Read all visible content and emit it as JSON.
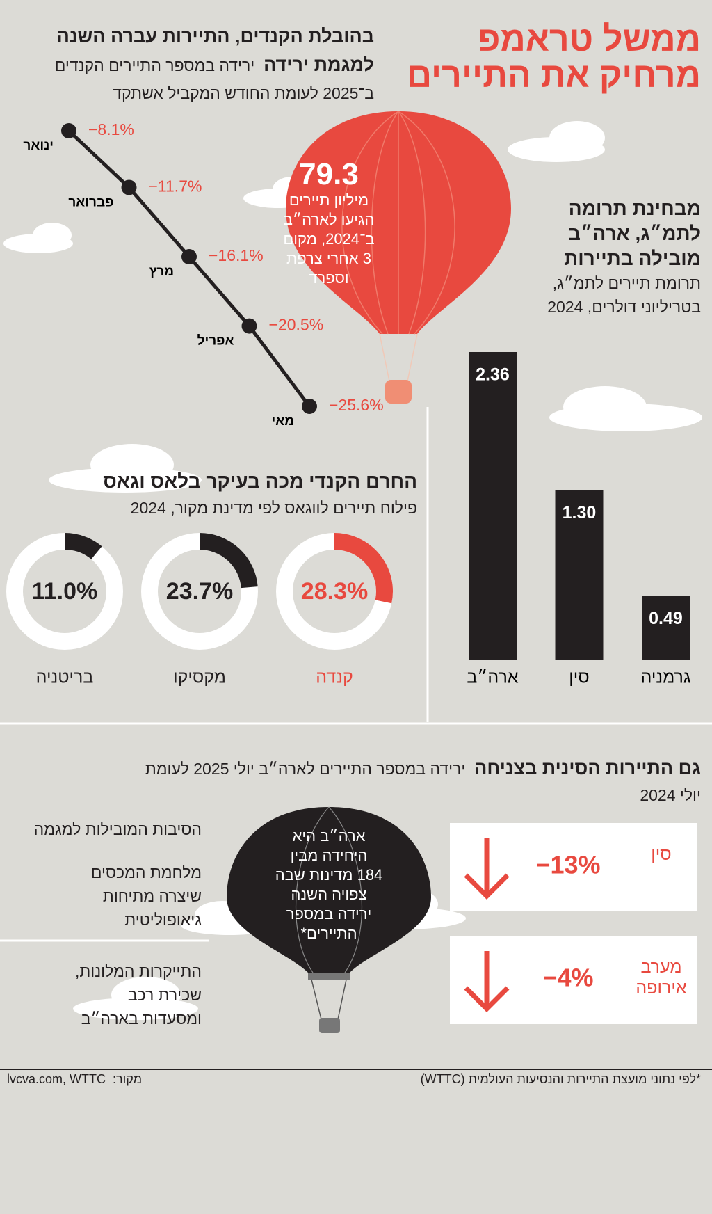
{
  "title": [
    "ממשל טראמפ",
    "מרחיק את התיירים"
  ],
  "chart_data": [
    {
      "type": "line",
      "title": "בהובלת הקנדים, התיירות עברה השנה למגמת ירידה",
      "subtitle": "ירידה במספר התיירים הקנדים ב־2025 לעומת החודש המקביל אשתקד",
      "categories": [
        "ינואר",
        "פברואר",
        "מרץ",
        "אפריל",
        "מאי"
      ],
      "values": [
        -8.1,
        -11.7,
        -16.1,
        -20.5,
        -25.6
      ],
      "value_labels": [
        "−8.1%",
        "−11.7%",
        "−16.1%",
        "−20.5%",
        "−25.6%"
      ],
      "color": "#231f20",
      "label_color": "#e8493f"
    },
    {
      "type": "bar",
      "title": "מבחינת תרומה לתמ״ג, ארה״ב מובילה בתיירות",
      "subtitle": "תרומת תיירים לתמ״ג, בטריליוני דולרים, 2024",
      "categories": [
        "ארה״ב",
        "סין",
        "גרמניה"
      ],
      "values": [
        2.36,
        1.3,
        0.49
      ],
      "value_labels": [
        "2.36",
        "1.30",
        "0.49"
      ],
      "color": "#231f20"
    },
    {
      "type": "donut",
      "title": "החרם הקנדי מכה בעיקר בלאס וגאס",
      "subtitle": "פילוח תיירים לווגאס לפי מדינת מקור, 2024",
      "categories": [
        "קנדה",
        "מקסיקו",
        "בריטניה"
      ],
      "values": [
        28.3,
        23.7,
        11.0
      ],
      "value_labels": [
        "28.3%",
        "23.7%",
        "11.0%"
      ],
      "colors": [
        "#e8493f",
        "#231f20",
        "#231f20"
      ]
    },
    {
      "type": "change",
      "title": "גם התיירות הסינית בצניחה",
      "subtitle": "ירידה במספר התיירים לארה״ב יולי 2025 לעומת יולי 2024",
      "categories": [
        "סין",
        "מערב אירופה"
      ],
      "values": [
        -13,
        -4
      ],
      "value_labels": [
        "−13%",
        "−4%"
      ],
      "color": "#e8493f"
    }
  ],
  "balloon": {
    "number": "79.3",
    "lines": [
      "מיליון תיירים",
      "הגיעו לארה״ב",
      "ב־2024, מקום",
      "3 אחרי צרפת",
      "וספרד"
    ]
  },
  "black_balloon": {
    "lines": [
      "ארה״ב היא",
      "היחידה מבין",
      "184 מדינות שבה",
      "צפויה השנה",
      "ירידה במספר",
      "התיירים*"
    ]
  },
  "reasons": {
    "title": "הסיבות המובילות למגמה",
    "items": [
      [
        "מלחמת המכסים",
        "שיצרה מתיחות",
        "גיאופוליטית"
      ],
      [
        "התייקרות המלונות,",
        "שכירת רכב",
        "ומסעדות בארה״ב"
      ]
    ]
  },
  "footer": {
    "note": "*לפי נתוני מועצת התיירות והנסיעות העולמית (WTTC)",
    "source_label": "מקור:",
    "source": "lvcva.com, WTTC"
  }
}
